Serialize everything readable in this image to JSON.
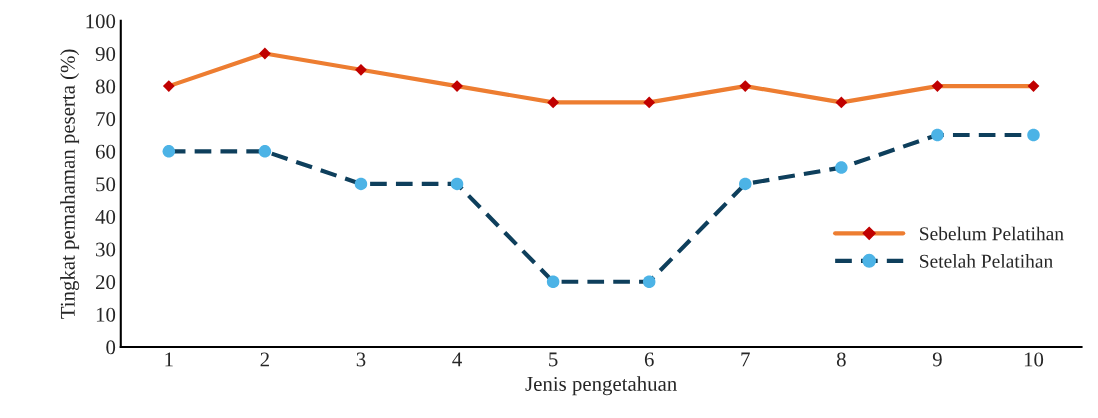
{
  "chart_data": {
    "type": "line",
    "xlabel": "Jenis pengetahuan",
    "ylabel": "Tingkat pemahaman peserta (%)",
    "categories": [
      "1",
      "2",
      "3",
      "4",
      "5",
      "6",
      "7",
      "8",
      "9",
      "10"
    ],
    "series": [
      {
        "name": "Sebelum Pelatihan",
        "color": "#ed7d31",
        "colors": [
          "#c00000",
          "#c00000",
          "#c00000",
          "#c00000",
          "#c00000",
          "#c00000",
          "#c00000",
          "#c00000",
          "#c00000",
          "#c00000"
        ],
        "marker": "diamond",
        "line_style": "solid",
        "values": [
          80,
          90,
          85,
          80,
          75,
          75,
          80,
          75,
          80,
          80
        ]
      },
      {
        "name": "Setelah Pelatihan",
        "color": "#0e3f5c",
        "colors": [
          "#4cb3e6",
          "#4cb3e6",
          "#4cb3e6",
          "#4cb3e6",
          "#4cb3e6",
          "#4cb3e6",
          "#4cb3e6",
          "#4cb3e6",
          "#4cb3e6",
          "#4cb3e6"
        ],
        "marker": "circle",
        "line_style": "dashed",
        "values": [
          60,
          60,
          50,
          50,
          20,
          20,
          50,
          55,
          65,
          65
        ]
      }
    ],
    "ylim": [
      0,
      100
    ],
    "yticks": [
      0,
      10,
      20,
      30,
      40,
      50,
      60,
      70,
      80,
      90,
      100
    ],
    "grid": false,
    "legend": "right"
  }
}
